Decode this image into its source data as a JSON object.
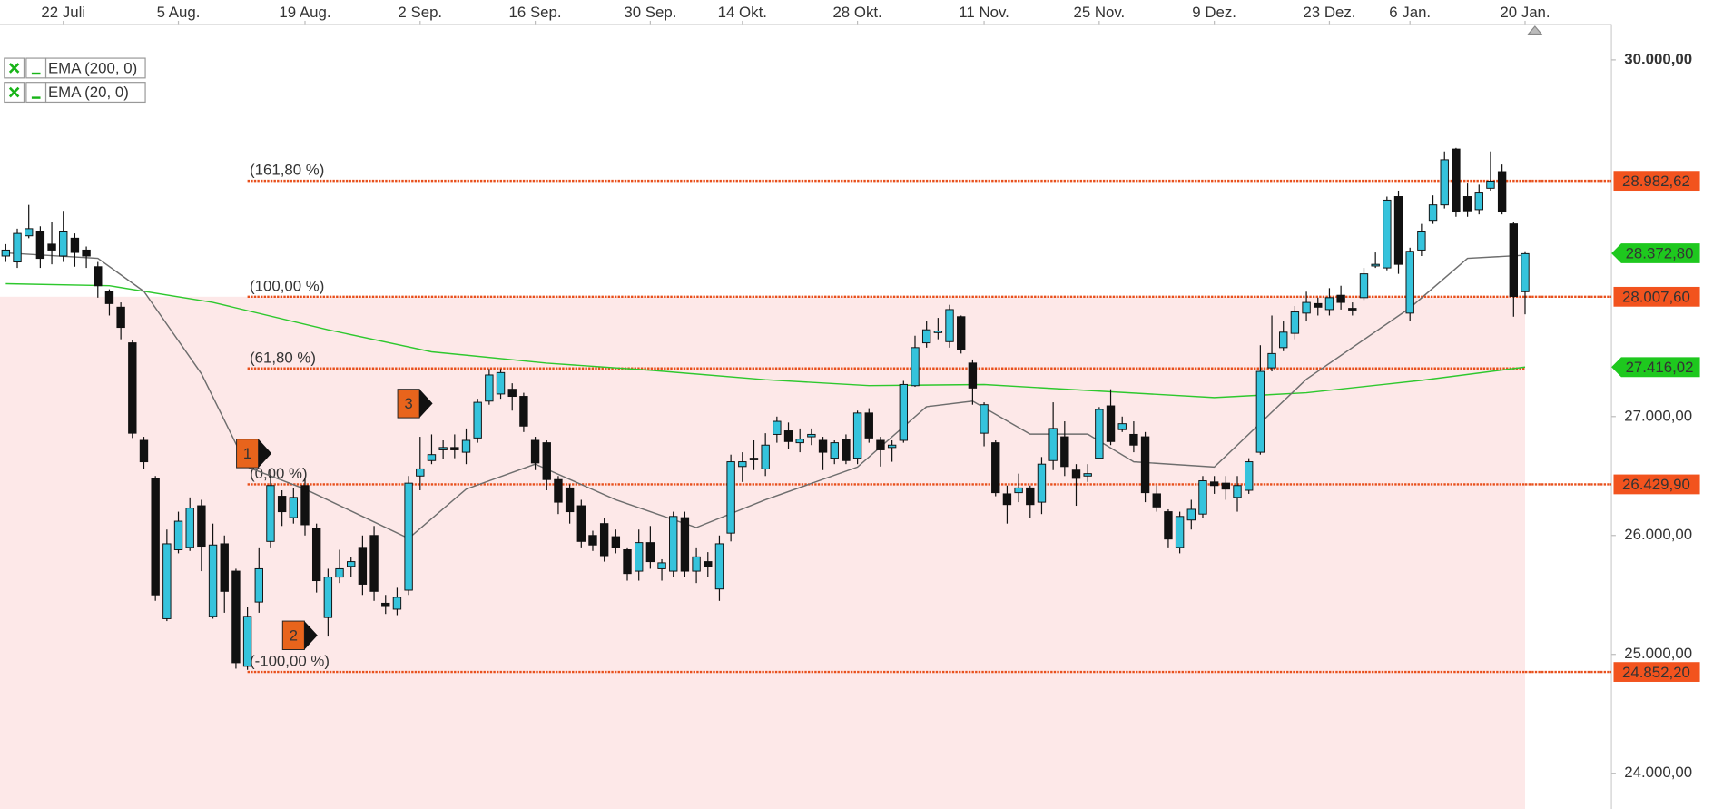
{
  "chart_data": {
    "type": "candlestick",
    "xlim": [
      -0.5,
      139.5
    ],
    "xticks": [
      {
        "value": 5,
        "label": "22 Juli"
      },
      {
        "value": 15,
        "label": "5 Aug."
      },
      {
        "value": 26,
        "label": "19 Aug."
      },
      {
        "value": 36,
        "label": "2 Sep."
      },
      {
        "value": 46,
        "label": "16 Sep."
      },
      {
        "value": 56,
        "label": "30 Sep."
      },
      {
        "value": 64,
        "label": "14 Okt."
      },
      {
        "value": 74,
        "label": "28 Okt."
      },
      {
        "value": 85,
        "label": "11 Nov."
      },
      {
        "value": 95,
        "label": "25 Nov."
      },
      {
        "value": 105,
        "label": "9 Dez."
      },
      {
        "value": 115,
        "label": "23 Dez."
      },
      {
        "value": 122,
        "label": "6 Jan."
      },
      {
        "value": 132,
        "label": "20 Jan."
      }
    ],
    "ylim": [
      23700,
      30300
    ],
    "yticks": [
      {
        "value": 30000,
        "label": "30.000,00"
      },
      {
        "value": 27000,
        "label": "27.000,00"
      },
      {
        "value": 26000,
        "label": "26.000,00"
      },
      {
        "value": 25000,
        "label": "25.000,00"
      },
      {
        "value": 24000,
        "label": "24.000,00"
      }
    ],
    "up_color": "#35c3dc",
    "down_color": "#111111",
    "legend_color": "#18b418",
    "open": [
      28350,
      28300,
      28520,
      28560,
      28450,
      28350,
      28500,
      28400,
      28260,
      28050,
      27920,
      27620,
      26800,
      26480,
      25300,
      25880,
      25900,
      26250,
      25320,
      25930,
      25700,
      24900,
      25440,
      25950,
      26330,
      26150,
      26420,
      26060,
      25310,
      25650,
      25740,
      25900,
      26000,
      25430,
      25380,
      25540,
      26500,
      26630,
      26720,
      26740,
      26700,
      26820,
      27130,
      27190,
      27230,
      27170,
      26800,
      26780,
      26470,
      26400,
      26250,
      26000,
      26100,
      25990,
      25880,
      25700,
      25940,
      25720,
      25700,
      26150,
      25700,
      25780,
      25550,
      26020,
      26580,
      26640,
      26560,
      26850,
      26880,
      26780,
      26830,
      26800,
      26650,
      26810,
      26650,
      27030,
      26800,
      26740,
      26800,
      27260,
      27620,
      27720,
      27630,
      27840,
      27450,
      26860,
      26780,
      26350,
      26360,
      26400,
      26280,
      26630,
      26830,
      26550,
      26500,
      26650,
      27090,
      26890,
      26850,
      26830,
      26350,
      26200,
      25900,
      26130,
      26180,
      26450,
      26440,
      26320,
      26380,
      26700,
      27410,
      27580,
      27700,
      27870,
      27950,
      27900,
      28020,
      27910,
      28000,
      28270,
      28250,
      28850,
      27870,
      28400,
      28650,
      28780,
      29250,
      28850,
      28740,
      28920,
      29060,
      28620,
      28050
    ],
    "high": [
      28450,
      28580,
      28780,
      28600,
      28640,
      28730,
      28540,
      28430,
      28300,
      28070,
      27960,
      27640,
      26830,
      26500,
      26050,
      26200,
      26320,
      26300,
      26100,
      26000,
      25720,
      25400,
      25900,
      26550,
      26380,
      26400,
      26480,
      26100,
      25720,
      25880,
      25820,
      26000,
      26080,
      25500,
      25560,
      26500,
      26830,
      26850,
      26800,
      26850,
      26900,
      27150,
      27400,
      27400,
      27280,
      27200,
      26830,
      26800,
      26500,
      26430,
      26300,
      26040,
      26150,
      26050,
      25900,
      26050,
      26080,
      25800,
      26200,
      26200,
      25900,
      25860,
      26000,
      26680,
      26700,
      26800,
      26860,
      27000,
      26950,
      26900,
      26900,
      26830,
      26800,
      26850,
      27050,
      27070,
      26830,
      26800,
      27300,
      27680,
      27800,
      27830,
      27940,
      27850,
      27480,
      27120,
      26800,
      26420,
      26520,
      26420,
      26660,
      27120,
      26960,
      26600,
      26600,
      27080,
      27230,
      27000,
      26960,
      26870,
      26420,
      26220,
      26200,
      26300,
      26500,
      26500,
      26500,
      26500,
      26650,
      27600,
      27850,
      27800,
      27930,
      28050,
      28000,
      28080,
      28100,
      27960,
      28250,
      28380,
      28850,
      28900,
      28420,
      28620,
      28860,
      29230,
      29260,
      28960,
      28950,
      29230,
      29120,
      28640,
      28390
    ],
    "low": [
      28300,
      28250,
      28500,
      28250,
      28280,
      28300,
      28260,
      28250,
      28000,
      27850,
      27650,
      26820,
      26560,
      25450,
      25280,
      25850,
      25870,
      25700,
      25300,
      25350,
      24880,
      24870,
      25350,
      25900,
      26080,
      26100,
      26000,
      25520,
      25150,
      25600,
      25650,
      25500,
      25450,
      25340,
      25330,
      25500,
      26380,
      26600,
      26640,
      26650,
      26600,
      26780,
      27100,
      27150,
      27050,
      26870,
      26550,
      26380,
      26180,
      26100,
      25900,
      25870,
      25780,
      25850,
      25620,
      25620,
      25720,
      25620,
      25650,
      25650,
      25600,
      25650,
      25450,
      25950,
      26450,
      26550,
      26500,
      26780,
      26730,
      26700,
      26760,
      26550,
      26600,
      26600,
      26600,
      26780,
      26580,
      26620,
      26780,
      27250,
      27580,
      27650,
      27580,
      27530,
      27100,
      26750,
      26330,
      26100,
      26280,
      26150,
      26180,
      26550,
      26500,
      26250,
      26450,
      26650,
      26760,
      26870,
      26700,
      26280,
      26200,
      25900,
      25850,
      26050,
      26150,
      26350,
      26300,
      26200,
      26350,
      26680,
      27380,
      27550,
      27650,
      27800,
      27850,
      27850,
      27900,
      27850,
      27980,
      28250,
      28230,
      28200,
      27800,
      28350,
      28620,
      28750,
      28680,
      28680,
      28700,
      28900,
      28700,
      27840,
      27860
    ],
    "close": [
      28400,
      28540,
      28580,
      28330,
      28400,
      28560,
      28380,
      28350,
      28100,
      27950,
      27750,
      26860,
      26620,
      25500,
      25930,
      26120,
      26230,
      25910,
      25920,
      25530,
      24930,
      25320,
      25720,
      26420,
      26200,
      26320,
      26090,
      25620,
      25650,
      25720,
      25780,
      25590,
      25530,
      25410,
      25480,
      26440,
      26560,
      26680,
      26740,
      26720,
      26800,
      27120,
      27350,
      27370,
      27170,
      26920,
      26610,
      26470,
      26280,
      26200,
      25950,
      25920,
      25830,
      25900,
      25680,
      25940,
      25780,
      25770,
      26160,
      25700,
      25820,
      25740,
      25930,
      26620,
      26620,
      26650,
      26760,
      26960,
      26790,
      26810,
      26850,
      26700,
      26780,
      26630,
      27030,
      26820,
      26720,
      26760,
      27270,
      27580,
      27730,
      27720,
      27900,
      27560,
      27240,
      27100,
      26360,
      26260,
      26400,
      26260,
      26600,
      26900,
      26580,
      26480,
      26520,
      27060,
      26790,
      26940,
      26760,
      26360,
      26240,
      25970,
      26160,
      26220,
      26460,
      26420,
      26390,
      26420,
      26620,
      27380,
      27530,
      27710,
      27880,
      27960,
      27920,
      28000,
      27960,
      27900,
      28200,
      28280,
      28820,
      28280,
      28390,
      28560,
      28780,
      29160,
      28720,
      28730,
      28880,
      28980,
      28720,
      28010,
      28370
    ],
    "series": [
      {
        "name": "EMA (200, 0)",
        "color": "#2ec82e",
        "x": [
          0,
          9,
          18,
          28,
          37,
          47,
          56,
          66,
          75,
          85,
          94,
          105,
          113,
          123,
          132
        ],
        "values": [
          28117,
          28100,
          27960,
          27730,
          27545,
          27450,
          27390,
          27310,
          27260,
          27270,
          27220,
          27160,
          27200,
          27305,
          27416
        ]
      },
      {
        "name": "EMA (20, 0)",
        "color": "#6e6e6e",
        "x": [
          0,
          8,
          12,
          17,
          21,
          26,
          31,
          35,
          40,
          46,
          53,
          60,
          66,
          74,
          80,
          84,
          89,
          94,
          98,
          105,
          113,
          122,
          127,
          132
        ],
        "values": [
          28376,
          28330,
          28053,
          27360,
          26575,
          26390,
          26160,
          25975,
          26390,
          26600,
          26300,
          26067,
          26300,
          26575,
          27083,
          27130,
          26852,
          26852,
          26620,
          26575,
          27314,
          27914,
          28330,
          28357
        ]
      }
    ],
    "fibonacci": {
      "color": "#e8501c",
      "start": 21,
      "levels": [
        {
          "label": "(161,80 %)",
          "value": 28982.62,
          "value_label": "28.982,62"
        },
        {
          "label": "(100,00 %)",
          "value": 28007.6,
          "value_label": "28.007,60"
        },
        {
          "label": "(61,80 %)",
          "value": 27404.9
        },
        {
          "label": "(0,00 %)",
          "value": 26429.9,
          "value_label": "26.429,90"
        },
        {
          "label": "(-100,00 %)",
          "value": 24852.2,
          "value_label": "24.852,20"
        }
      ]
    },
    "price_labels": [
      {
        "value": 28372.8,
        "label": "28.372,80",
        "color": "#1ec81e"
      },
      {
        "value": 27416.02,
        "label": "27.416,02",
        "color": "#1ec81e"
      }
    ],
    "markers": [
      {
        "label": "1",
        "x": 21,
        "value": 26690
      },
      {
        "label": "2",
        "x": 25,
        "value": 25160
      },
      {
        "label": "3",
        "x": 35,
        "value": 27110
      }
    ]
  }
}
